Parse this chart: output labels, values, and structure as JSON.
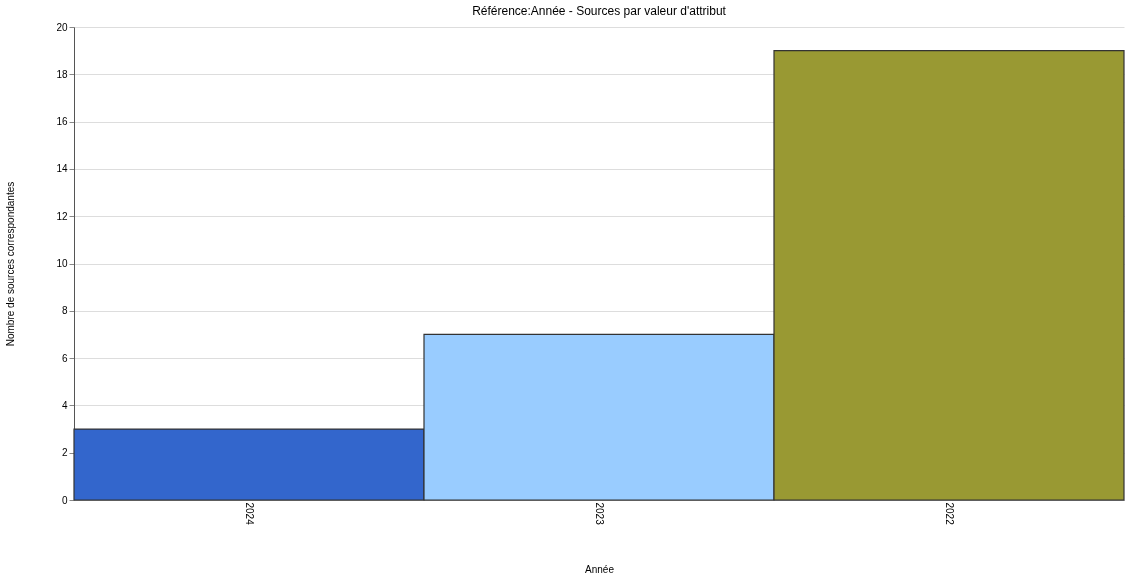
{
  "chart_data": {
    "type": "bar",
    "title": "Référence:Année - Sources par valeur d'attribut",
    "xlabel": "Année",
    "ylabel": "Nombre de sources correspondantes",
    "categories": [
      "2024",
      "2023",
      "2022"
    ],
    "values": [
      3,
      7,
      19
    ],
    "colors": [
      "#3366cc",
      "#99ccff",
      "#999933"
    ],
    "ylim": [
      0,
      20
    ],
    "yticks": [
      0,
      2,
      4,
      6,
      8,
      10,
      12,
      14,
      16,
      18,
      20
    ],
    "grid": "y"
  }
}
